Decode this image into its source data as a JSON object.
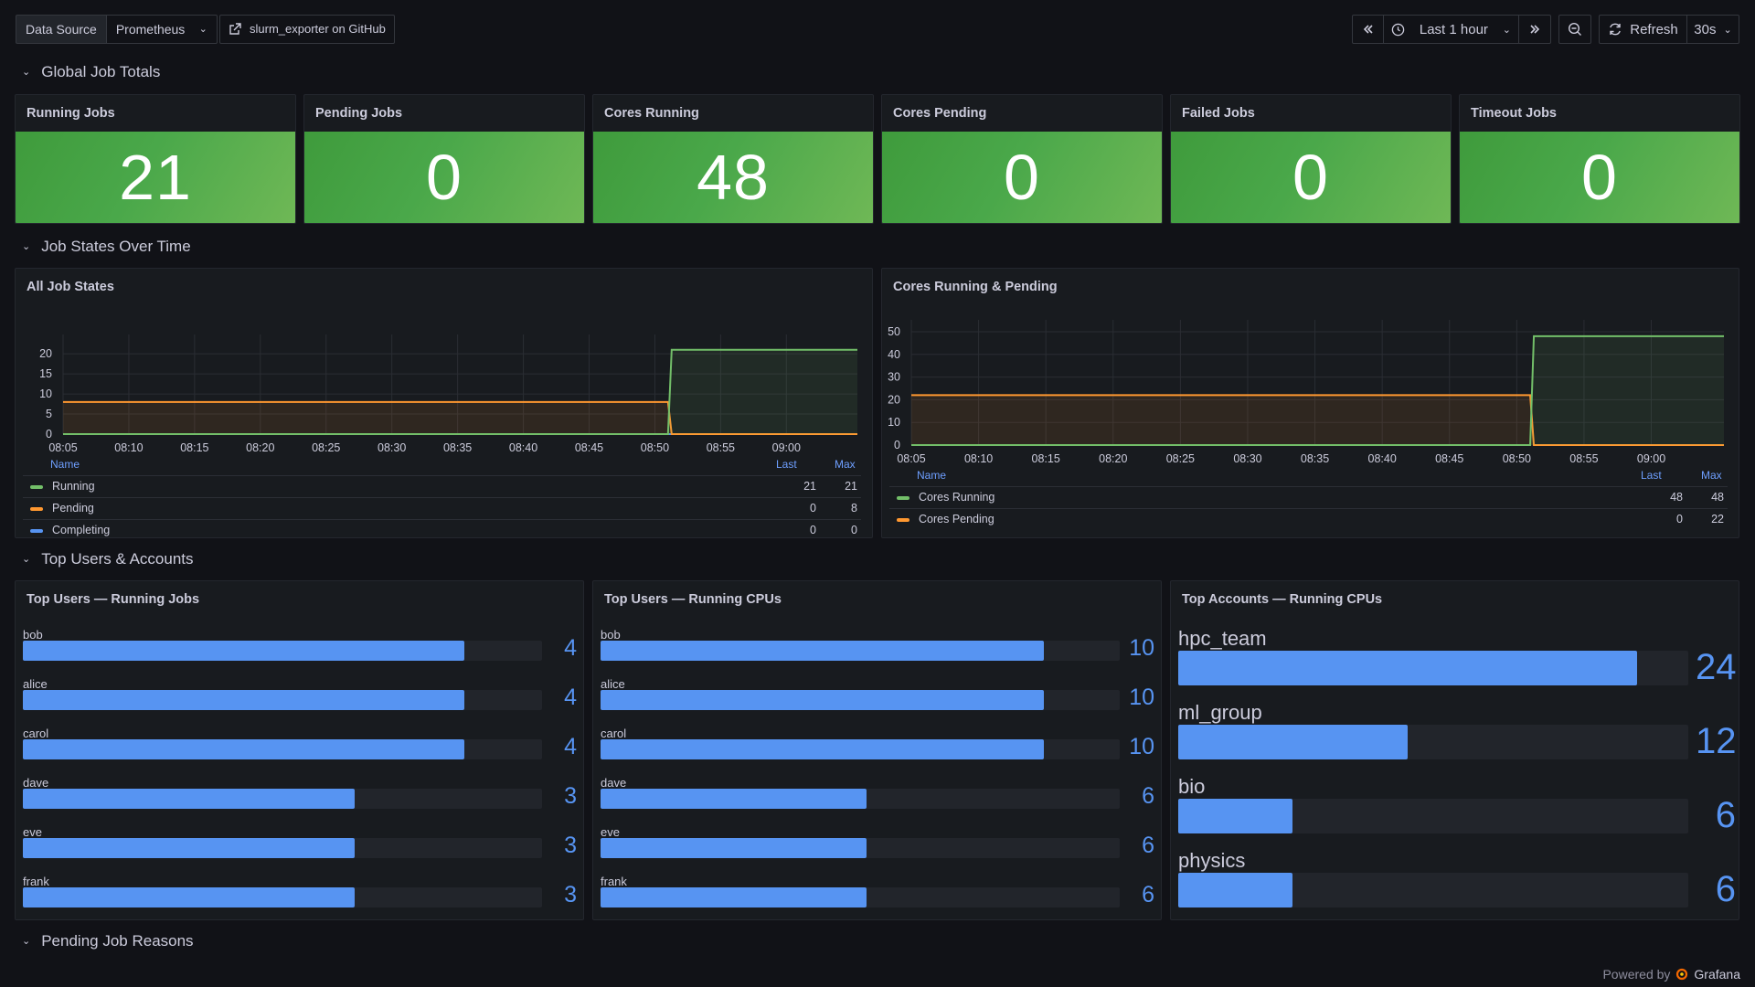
{
  "toolbar": {
    "datasource_label": "Data Source",
    "datasource_value": "Prometheus",
    "github_link": "slurm_exporter on GitHub",
    "time_range": "Last 1 hour",
    "refresh_label": "Refresh",
    "refresh_interval": "30s"
  },
  "rows": {
    "global": "Global Job Totals",
    "states": "Job States Over Time",
    "users": "Top Users & Accounts",
    "pending": "Pending Job Reasons"
  },
  "stats": [
    {
      "title": "Running Jobs",
      "value": "21"
    },
    {
      "title": "Pending Jobs",
      "value": "0"
    },
    {
      "title": "Cores Running",
      "value": "48"
    },
    {
      "title": "Cores Pending",
      "value": "0"
    },
    {
      "title": "Failed Jobs",
      "value": "0"
    },
    {
      "title": "Timeout Jobs",
      "value": "0"
    }
  ],
  "colors": {
    "running": "#73bf69",
    "pending": "#ff9830",
    "completing": "#5794f2",
    "bar": "#5794f2",
    "stat_green": "#4aa84a"
  },
  "jobStates": {
    "title": "All Job States",
    "legend_name": "Name",
    "legend_last": "Last",
    "legend_max": "Max",
    "series": [
      {
        "name": "Running",
        "last": "21",
        "max": "21"
      },
      {
        "name": "Pending",
        "last": "0",
        "max": "8"
      },
      {
        "name": "Completing",
        "last": "0",
        "max": "0"
      }
    ]
  },
  "cores": {
    "title": "Cores Running & Pending",
    "legend_name": "Name",
    "legend_last": "Last",
    "legend_max": "Max",
    "series": [
      {
        "name": "Cores Running",
        "last": "48",
        "max": "48"
      },
      {
        "name": "Cores Pending",
        "last": "0",
        "max": "22"
      }
    ]
  },
  "chart_data": [
    {
      "type": "line",
      "title": "All Job States",
      "x": [
        "08:05",
        "08:10",
        "08:15",
        "08:20",
        "08:25",
        "08:30",
        "08:35",
        "08:40",
        "08:45",
        "08:50",
        "08:55",
        "09:00"
      ],
      "ylim": [
        0,
        23
      ],
      "yticks": [
        0,
        5,
        10,
        15,
        20
      ],
      "step_time": "08:51",
      "series": [
        {
          "name": "Running",
          "before": 0,
          "after": 21
        },
        {
          "name": "Pending",
          "before": 8,
          "after": 0
        },
        {
          "name": "Completing",
          "before": 0,
          "after": 0
        }
      ]
    },
    {
      "type": "line",
      "title": "Cores Running & Pending",
      "x": [
        "08:05",
        "08:10",
        "08:15",
        "08:20",
        "08:25",
        "08:30",
        "08:35",
        "08:40",
        "08:45",
        "08:50",
        "08:55",
        "09:00"
      ],
      "ylim": [
        0,
        52
      ],
      "yticks": [
        0,
        10,
        20,
        30,
        40,
        50
      ],
      "step_time": "08:51",
      "series": [
        {
          "name": "Cores Running",
          "before": 0,
          "after": 48
        },
        {
          "name": "Cores Pending",
          "before": 22,
          "after": 0
        }
      ]
    }
  ],
  "topUsersJobs": {
    "title": "Top Users — Running Jobs",
    "max": 4.7,
    "items": [
      {
        "name": "bob",
        "value": "4"
      },
      {
        "name": "alice",
        "value": "4"
      },
      {
        "name": "carol",
        "value": "4"
      },
      {
        "name": "dave",
        "value": "3"
      },
      {
        "name": "eve",
        "value": "3"
      },
      {
        "name": "frank",
        "value": "3"
      }
    ]
  },
  "topUsersCpus": {
    "title": "Top Users — Running CPUs",
    "max": 11.7,
    "items": [
      {
        "name": "bob",
        "value": "10"
      },
      {
        "name": "alice",
        "value": "10"
      },
      {
        "name": "carol",
        "value": "10"
      },
      {
        "name": "dave",
        "value": "6"
      },
      {
        "name": "eve",
        "value": "6"
      },
      {
        "name": "frank",
        "value": "6"
      }
    ]
  },
  "topAccounts": {
    "title": "Top Accounts — Running CPUs",
    "max": 26.7,
    "items": [
      {
        "name": "hpc_team",
        "value": "24"
      },
      {
        "name": "ml_group",
        "value": "12"
      },
      {
        "name": "bio",
        "value": "6"
      },
      {
        "name": "physics",
        "value": "6"
      }
    ]
  },
  "footer": {
    "powered": "Powered by",
    "brand": "Grafana"
  }
}
